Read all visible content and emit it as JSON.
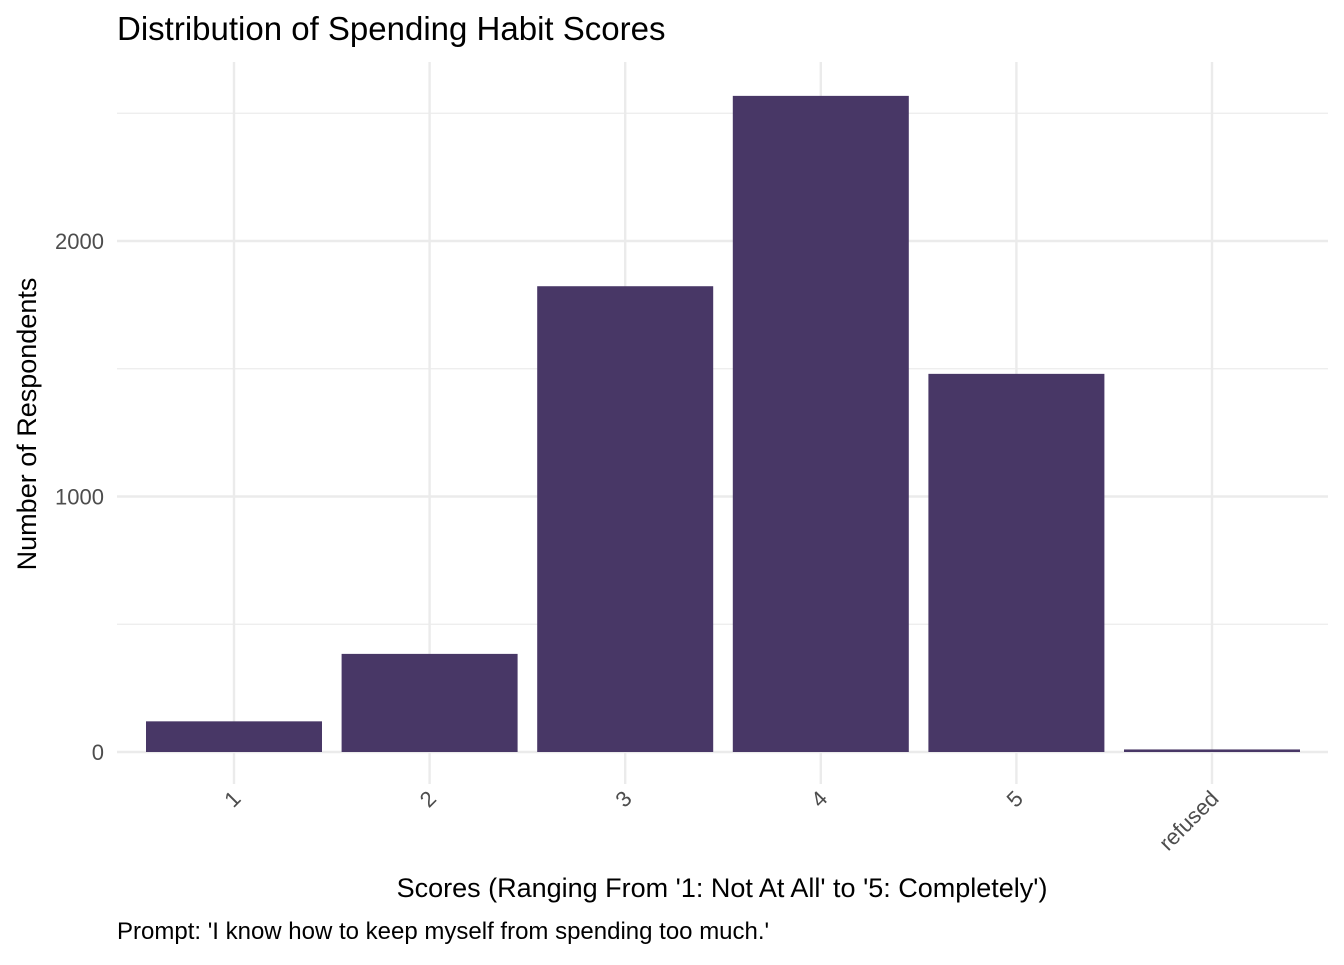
{
  "chart_data": {
    "type": "bar",
    "title": "Distribution of Spending Habit Scores",
    "xlabel": "Scores (Ranging From '1: Not At All' to '5: Completely')",
    "ylabel": "Number of Respondents",
    "caption": "Prompt: 'I know how to keep myself from spending too much.'",
    "categories": [
      "1",
      "2",
      "3",
      "4",
      "5",
      "refused"
    ],
    "values": [
      120,
      384,
      1823,
      2568,
      1480,
      10
    ],
    "ylim": [
      0,
      2700
    ],
    "y_ticks": [
      0,
      1000,
      2000
    ],
    "y_tick_labels": [
      "0",
      "1000",
      "2000"
    ],
    "grid": true,
    "x_tick_rotation": -45,
    "bar_color": "#483766",
    "colors": {
      "background": "#ffffff",
      "grid": "#ebebeb",
      "text": "#000000",
      "tick_text": "#4d4d4d"
    }
  }
}
